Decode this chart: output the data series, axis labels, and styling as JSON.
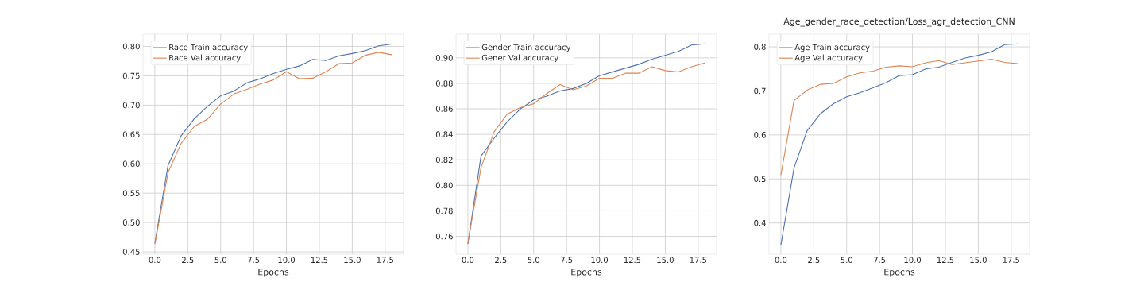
{
  "chart_data": [
    {
      "type": "line",
      "xlabel": "Epochs",
      "x": [
        0,
        1,
        2,
        3,
        4,
        5,
        6,
        7,
        8,
        9,
        10,
        11,
        12,
        13,
        14,
        15,
        16,
        17,
        18
      ],
      "series": [
        {
          "name": "Race Train accuracy",
          "color": "#4c72b0",
          "values": [
            0.465,
            0.597,
            0.648,
            0.677,
            0.698,
            0.716,
            0.724,
            0.738,
            0.745,
            0.754,
            0.761,
            0.767,
            0.778,
            0.776,
            0.784,
            0.788,
            0.793,
            0.801,
            0.804
          ]
        },
        {
          "name": "Race Val accuracy",
          "color": "#dd8452",
          "values": [
            0.463,
            0.585,
            0.635,
            0.664,
            0.676,
            0.702,
            0.719,
            0.727,
            0.736,
            0.743,
            0.757,
            0.745,
            0.746,
            0.757,
            0.771,
            0.772,
            0.785,
            0.79,
            0.786
          ]
        }
      ],
      "xlim": [
        -0.9,
        18.9
      ],
      "ylim": [
        0.446,
        0.821
      ],
      "xticks": [
        {
          "value": 0,
          "label": "0.0"
        },
        2.5,
        {
          "value": 5,
          "label": "5.0"
        },
        7.5,
        {
          "value": 10,
          "label": "10.0"
        },
        12.5,
        {
          "value": 15,
          "label": "15.0"
        },
        17.5
      ],
      "yticks": [
        {
          "value": 0.45,
          "label": "0.45"
        },
        {
          "value": 0.5,
          "label": "0.50"
        },
        0.55,
        {
          "value": 0.6,
          "label": "0.60"
        },
        0.65,
        {
          "value": 0.7,
          "label": "0.70"
        },
        0.75,
        {
          "value": 0.8,
          "label": "0.80"
        }
      ],
      "grid": true,
      "legend": "top left"
    },
    {
      "type": "line",
      "xlabel": "Epochs",
      "x": [
        0,
        1,
        2,
        3,
        4,
        5,
        6,
        7,
        8,
        9,
        10,
        11,
        12,
        13,
        14,
        15,
        16,
        17,
        18
      ],
      "series": [
        {
          "name": "Gender Train accuracy",
          "color": "#4c72b0",
          "values": [
            0.754,
            0.823,
            0.837,
            0.85,
            0.86,
            0.867,
            0.87,
            0.874,
            0.876,
            0.88,
            0.886,
            0.889,
            0.892,
            0.895,
            0.899,
            0.902,
            0.905,
            0.91,
            0.911
          ]
        },
        {
          "name": "Gener Val accuracy",
          "color": "#dd8452",
          "values": [
            0.755,
            0.814,
            0.842,
            0.856,
            0.861,
            0.864,
            0.872,
            0.879,
            0.875,
            0.878,
            0.884,
            0.884,
            0.888,
            0.888,
            0.893,
            0.89,
            0.889,
            0.893,
            0.896
          ]
        }
      ],
      "xlim": [
        -0.9,
        18.9
      ],
      "ylim": [
        0.746,
        0.9186
      ],
      "xticks": [
        {
          "value": 0,
          "label": "0.0"
        },
        2.5,
        {
          "value": 5,
          "label": "5.0"
        },
        7.5,
        {
          "value": 10,
          "label": "10.0"
        },
        12.5,
        {
          "value": 15,
          "label": "15.0"
        },
        17.5
      ],
      "yticks": [
        0.76,
        0.78,
        {
          "value": 0.8,
          "label": "0.80"
        },
        0.82,
        0.84,
        0.86,
        0.88,
        {
          "value": 0.9,
          "label": "0.90"
        }
      ],
      "grid": true,
      "legend": "top left"
    },
    {
      "type": "line",
      "title": "Age_gender_race_detection/Loss_agr_detection_CNN",
      "xlabel": "Epochs",
      "x": [
        0,
        1,
        2,
        3,
        4,
        5,
        6,
        7,
        8,
        9,
        10,
        11,
        12,
        13,
        14,
        15,
        16,
        17,
        18
      ],
      "series": [
        {
          "name": "Age Train accuracy",
          "color": "#4c72b0",
          "values": [
            0.35,
            0.525,
            0.61,
            0.648,
            0.671,
            0.687,
            0.696,
            0.707,
            0.719,
            0.735,
            0.737,
            0.75,
            0.754,
            0.765,
            0.775,
            0.781,
            0.789,
            0.805,
            0.807
          ]
        },
        {
          "name": "Age Val accuracy",
          "color": "#dd8452",
          "values": [
            0.509,
            0.678,
            0.702,
            0.715,
            0.717,
            0.732,
            0.741,
            0.745,
            0.754,
            0.757,
            0.755,
            0.764,
            0.769,
            0.76,
            0.764,
            0.768,
            0.772,
            0.765,
            0.762
          ]
        }
      ],
      "xlim": [
        -0.9,
        18.9
      ],
      "ylim": [
        0.329,
        0.829
      ],
      "xticks": [
        {
          "value": 0,
          "label": "0.0"
        },
        2.5,
        {
          "value": 5,
          "label": "5.0"
        },
        7.5,
        {
          "value": 10,
          "label": "10.0"
        },
        12.5,
        {
          "value": 15,
          "label": "15.0"
        },
        17.5
      ],
      "yticks": [
        0.4,
        0.5,
        0.6,
        0.7,
        0.8
      ],
      "grid": true,
      "legend": "top left"
    }
  ]
}
